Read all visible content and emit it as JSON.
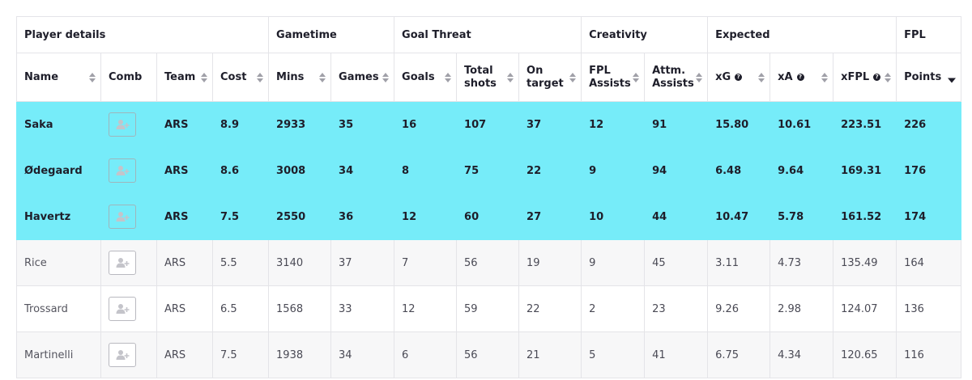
{
  "groups": [
    {
      "label": "Player details"
    },
    {
      "label": "Gametime"
    },
    {
      "label": "Goal Threat"
    },
    {
      "label": "Creativity"
    },
    {
      "label": "Expected"
    },
    {
      "label": "FPL"
    }
  ],
  "columns": {
    "name": "Name",
    "comb": "Comb",
    "team": "Team",
    "cost": "Cost",
    "mins": "Mins",
    "games": "Games",
    "goals": "Goals",
    "total_shots": "Total shots",
    "on_target": "On target",
    "fpl_assists": "FPL Assists",
    "attm_assists": "Attm. Assists",
    "xg": "xG",
    "xa": "xA",
    "xfpl": "xFPL",
    "points": "Points"
  },
  "help_glyph": "?",
  "colors": {
    "selected_row": "#76ecf9",
    "even_row": "#f7f7f8",
    "border": "#e4e4e8"
  },
  "icons": {
    "comb": "add-player-icon",
    "sort": "sort-icon",
    "help": "help-icon"
  },
  "rows": [
    {
      "name": "Saka",
      "team": "ARS",
      "cost": "8.9",
      "mins": "2933",
      "games": "35",
      "goals": "16",
      "total_shots": "107",
      "on_target": "37",
      "fpl_assists": "12",
      "attm_assists": "91",
      "xg": "15.80",
      "xa": "10.61",
      "xfpl": "223.51",
      "points": "226",
      "selected": true
    },
    {
      "name": "Ødegaard",
      "team": "ARS",
      "cost": "8.6",
      "mins": "3008",
      "games": "34",
      "goals": "8",
      "total_shots": "75",
      "on_target": "22",
      "fpl_assists": "9",
      "attm_assists": "94",
      "xg": "6.48",
      "xa": "9.64",
      "xfpl": "169.31",
      "points": "176",
      "selected": true
    },
    {
      "name": "Havertz",
      "team": "ARS",
      "cost": "7.5",
      "mins": "2550",
      "games": "36",
      "goals": "12",
      "total_shots": "60",
      "on_target": "27",
      "fpl_assists": "10",
      "attm_assists": "44",
      "xg": "10.47",
      "xa": "5.78",
      "xfpl": "161.52",
      "points": "174",
      "selected": true
    },
    {
      "name": "Rice",
      "team": "ARS",
      "cost": "5.5",
      "mins": "3140",
      "games": "37",
      "goals": "7",
      "total_shots": "56",
      "on_target": "19",
      "fpl_assists": "9",
      "attm_assists": "45",
      "xg": "3.11",
      "xa": "4.73",
      "xfpl": "135.49",
      "points": "164",
      "selected": false
    },
    {
      "name": "Trossard",
      "team": "ARS",
      "cost": "6.5",
      "mins": "1568",
      "games": "33",
      "goals": "12",
      "total_shots": "59",
      "on_target": "22",
      "fpl_assists": "2",
      "attm_assists": "23",
      "xg": "9.26",
      "xa": "2.98",
      "xfpl": "124.07",
      "points": "136",
      "selected": false
    },
    {
      "name": "Martinelli",
      "team": "ARS",
      "cost": "7.5",
      "mins": "1938",
      "games": "34",
      "goals": "6",
      "total_shots": "56",
      "on_target": "21",
      "fpl_assists": "5",
      "attm_assists": "41",
      "xg": "6.75",
      "xa": "4.34",
      "xfpl": "120.65",
      "points": "116",
      "selected": false
    }
  ]
}
